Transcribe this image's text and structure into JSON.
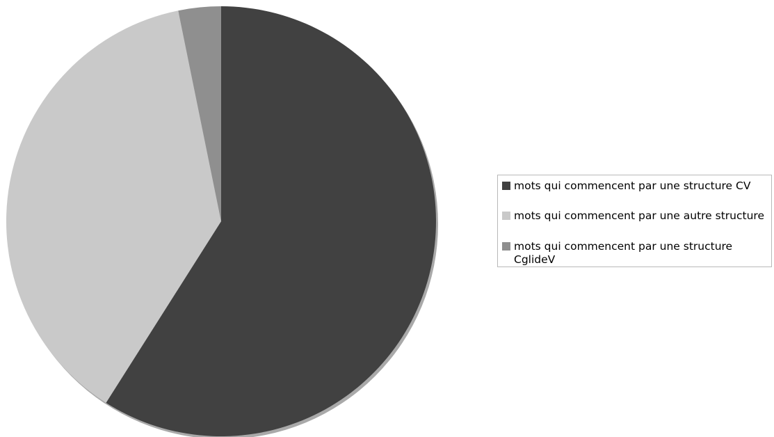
{
  "chart_data": {
    "type": "pie",
    "title": "",
    "categories": [
      "mots qui commencent par une structure CV",
      "mots qui commencent par une autre structure",
      "mots qui commencent par une structure CglideV"
    ],
    "values": [
      59,
      37.8,
      3.2
    ],
    "colors": [
      "#414141",
      "#c9c9c9",
      "#8f8f8f"
    ],
    "start_angle": "top",
    "direction": "clockwise",
    "legend_position": "right",
    "show_shadow": true
  }
}
